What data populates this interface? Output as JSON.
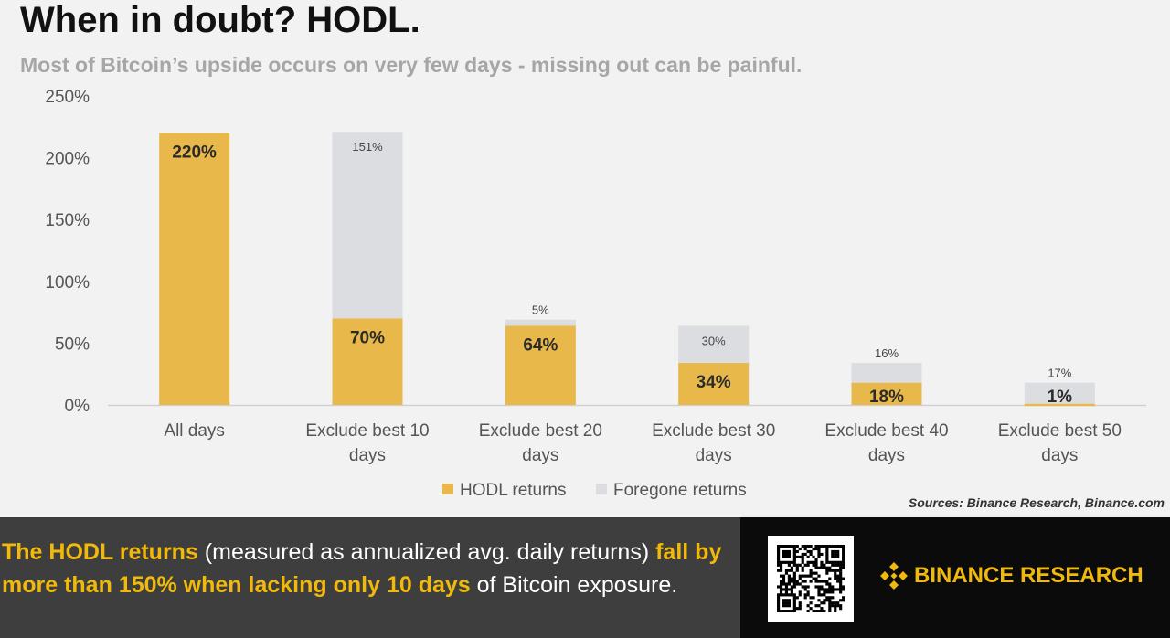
{
  "header": {
    "title": "When in doubt? HODL.",
    "subtitle": "Most of Bitcoin’s upside occurs on very few days - missing out can be painful."
  },
  "chart_data": {
    "type": "bar",
    "stacked": true,
    "categories": [
      [
        "All days"
      ],
      [
        "Exclude best 10",
        "days"
      ],
      [
        "Exclude best 20",
        "days"
      ],
      [
        "Exclude best 30",
        "days"
      ],
      [
        "Exclude best 40",
        "days"
      ],
      [
        "Exclude best 50",
        "days"
      ]
    ],
    "series": [
      {
        "name": "HODL returns",
        "values": [
          220,
          70,
          64,
          34,
          18,
          1
        ],
        "labels": [
          "220%",
          "70%",
          "64%",
          "34%",
          "18%",
          "1%"
        ],
        "color": "#e8b84a"
      },
      {
        "name": "Foregone returns",
        "values": [
          0,
          151,
          5,
          30,
          16,
          17
        ],
        "labels": [
          "",
          "151%",
          "5%",
          "30%",
          "16%",
          "17%"
        ],
        "color": "#dcdde1"
      }
    ],
    "ylim": [
      0,
      250
    ],
    "yticks": [
      "0%",
      "50%",
      "100%",
      "150%",
      "200%",
      "250%"
    ],
    "grid": false,
    "legend_position": "bottom"
  },
  "source": "Sources: Binance Research, Binance.com",
  "footer": {
    "p1_hl": "The HODL returns",
    "p2": " (measured as annualized avg. daily returns) ",
    "p3_hl": "fall by more than 150% when lacking only 10 days",
    "p4": " of Bitcoin exposure.",
    "brand": "BINANCE RESEARCH",
    "brand_color": "#f0b90b"
  }
}
